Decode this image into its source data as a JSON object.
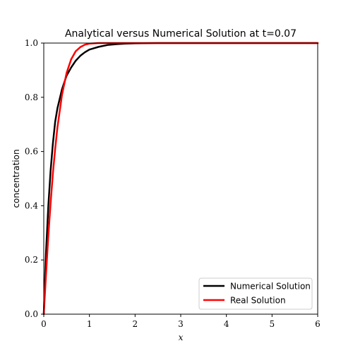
{
  "chart_data": {
    "type": "line",
    "title": "Analytical versus Numerical Solution at t=0.07",
    "xlabel": "x",
    "ylabel": "concentration",
    "xlim": [
      0,
      6
    ],
    "ylim": [
      0,
      1
    ],
    "x_ticks": [
      "0",
      "1",
      "2",
      "3",
      "4",
      "5",
      "6"
    ],
    "y_ticks": [
      "0.0",
      "0.2",
      "0.4",
      "0.6",
      "0.8",
      "1.0"
    ],
    "grid": false,
    "legend_position": "bottom-right",
    "series": [
      {
        "name": "Numerical Solution",
        "color": "#000000",
        "x": [
          0,
          0.05,
          0.1,
          0.15,
          0.2,
          0.25,
          0.3,
          0.4,
          0.5,
          0.6,
          0.7,
          0.8,
          0.9,
          1.0,
          1.2,
          1.4,
          1.6,
          1.8,
          2.0,
          2.5,
          3.0,
          4.0,
          5.0,
          6.0
        ],
        "y": [
          0,
          0.23,
          0.4,
          0.53,
          0.63,
          0.71,
          0.76,
          0.83,
          0.88,
          0.91,
          0.935,
          0.953,
          0.966,
          0.976,
          0.986,
          0.993,
          0.996,
          0.998,
          0.999,
          1.0,
          1.0,
          1.0,
          1.0,
          1.0
        ]
      },
      {
        "name": "Real Solution",
        "color": "#ff0000",
        "x": [
          0,
          0.05,
          0.1,
          0.15,
          0.2,
          0.25,
          0.3,
          0.4,
          0.5,
          0.6,
          0.7,
          0.8,
          0.9,
          1.0,
          1.2,
          1.4,
          1.6,
          2.0,
          3.0,
          4.0,
          5.0,
          6.0
        ],
        "y": [
          0,
          0.15,
          0.29,
          0.41,
          0.52,
          0.61,
          0.69,
          0.81,
          0.89,
          0.94,
          0.97,
          0.985,
          0.994,
          0.998,
          1.0,
          1.0,
          1.0,
          1.0,
          1.0,
          1.0,
          1.0,
          1.0
        ]
      }
    ]
  }
}
